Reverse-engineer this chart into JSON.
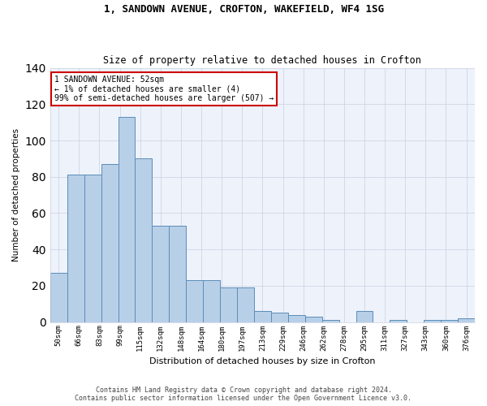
{
  "title1": "1, SANDOWN AVENUE, CROFTON, WAKEFIELD, WF4 1SG",
  "title2": "Size of property relative to detached houses in Crofton",
  "xlabel": "Distribution of detached houses by size in Crofton",
  "ylabel": "Number of detached properties",
  "footer1": "Contains HM Land Registry data © Crown copyright and database right 2024.",
  "footer2": "Contains public sector information licensed under the Open Government Licence v3.0.",
  "annotation_line1": "1 SANDOWN AVENUE: 52sqm",
  "annotation_line2": "← 1% of detached houses are smaller (4)",
  "annotation_line3": "99% of semi-detached houses are larger (507) →",
  "bar_heights": [
    27,
    81,
    81,
    87,
    113,
    90,
    53,
    53,
    23,
    23,
    19,
    19,
    6,
    5,
    4,
    3,
    1,
    0,
    6,
    0,
    1,
    0,
    1,
    1,
    2
  ],
  "categories": [
    "50sqm",
    "66sqm",
    "83sqm",
    "99sqm",
    "115sqm",
    "132sqm",
    "148sqm",
    "164sqm",
    "180sqm",
    "197sqm",
    "213sqm",
    "229sqm",
    "246sqm",
    "262sqm",
    "278sqm",
    "295sqm",
    "311sqm",
    "327sqm",
    "343sqm",
    "360sqm",
    "376sqm"
  ],
  "bar_color": "#b8cfe8",
  "bar_edge_color": "#5b8db8",
  "background_color": "#eef2fb",
  "grid_color": "#c8d0e0",
  "annotation_box_color": "#cc0000",
  "ylim": [
    0,
    140
  ],
  "yticks": [
    0,
    20,
    40,
    60,
    80,
    100,
    120,
    140
  ],
  "title_fontsize": 9,
  "subtitle_fontsize": 8.5
}
